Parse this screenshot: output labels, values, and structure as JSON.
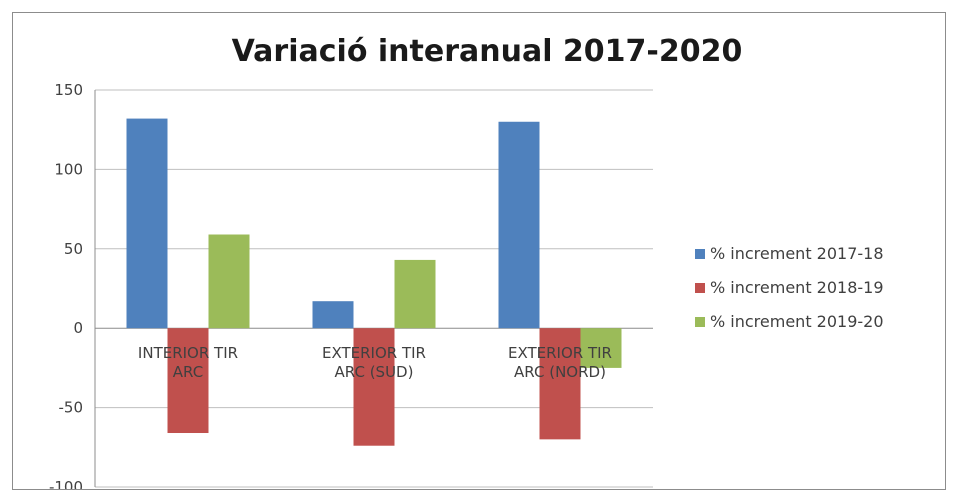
{
  "chart_data": {
    "type": "bar",
    "title": "Variació interanual 2017-2020",
    "categories": [
      [
        "INTERIOR TIR",
        "ARC"
      ],
      [
        "EXTERIOR TIR",
        "ARC (SUD)"
      ],
      [
        "EXTERIOR TIR",
        "ARC (NORD)"
      ]
    ],
    "series": [
      {
        "name": "% increment 2017-18",
        "color": "#4f81bd",
        "values": [
          132,
          17,
          130
        ]
      },
      {
        "name": "% increment 2018-19",
        "color": "#c0504d",
        "values": [
          -66,
          -74,
          -70
        ]
      },
      {
        "name": "% increment 2019-20",
        "color": "#9bbb59",
        "values": [
          59,
          43,
          -25
        ]
      }
    ],
    "ylim": [
      -100,
      150
    ],
    "yticks": [
      150,
      100,
      50,
      0,
      -50,
      -100
    ],
    "grid": true,
    "legend_position": "right"
  }
}
